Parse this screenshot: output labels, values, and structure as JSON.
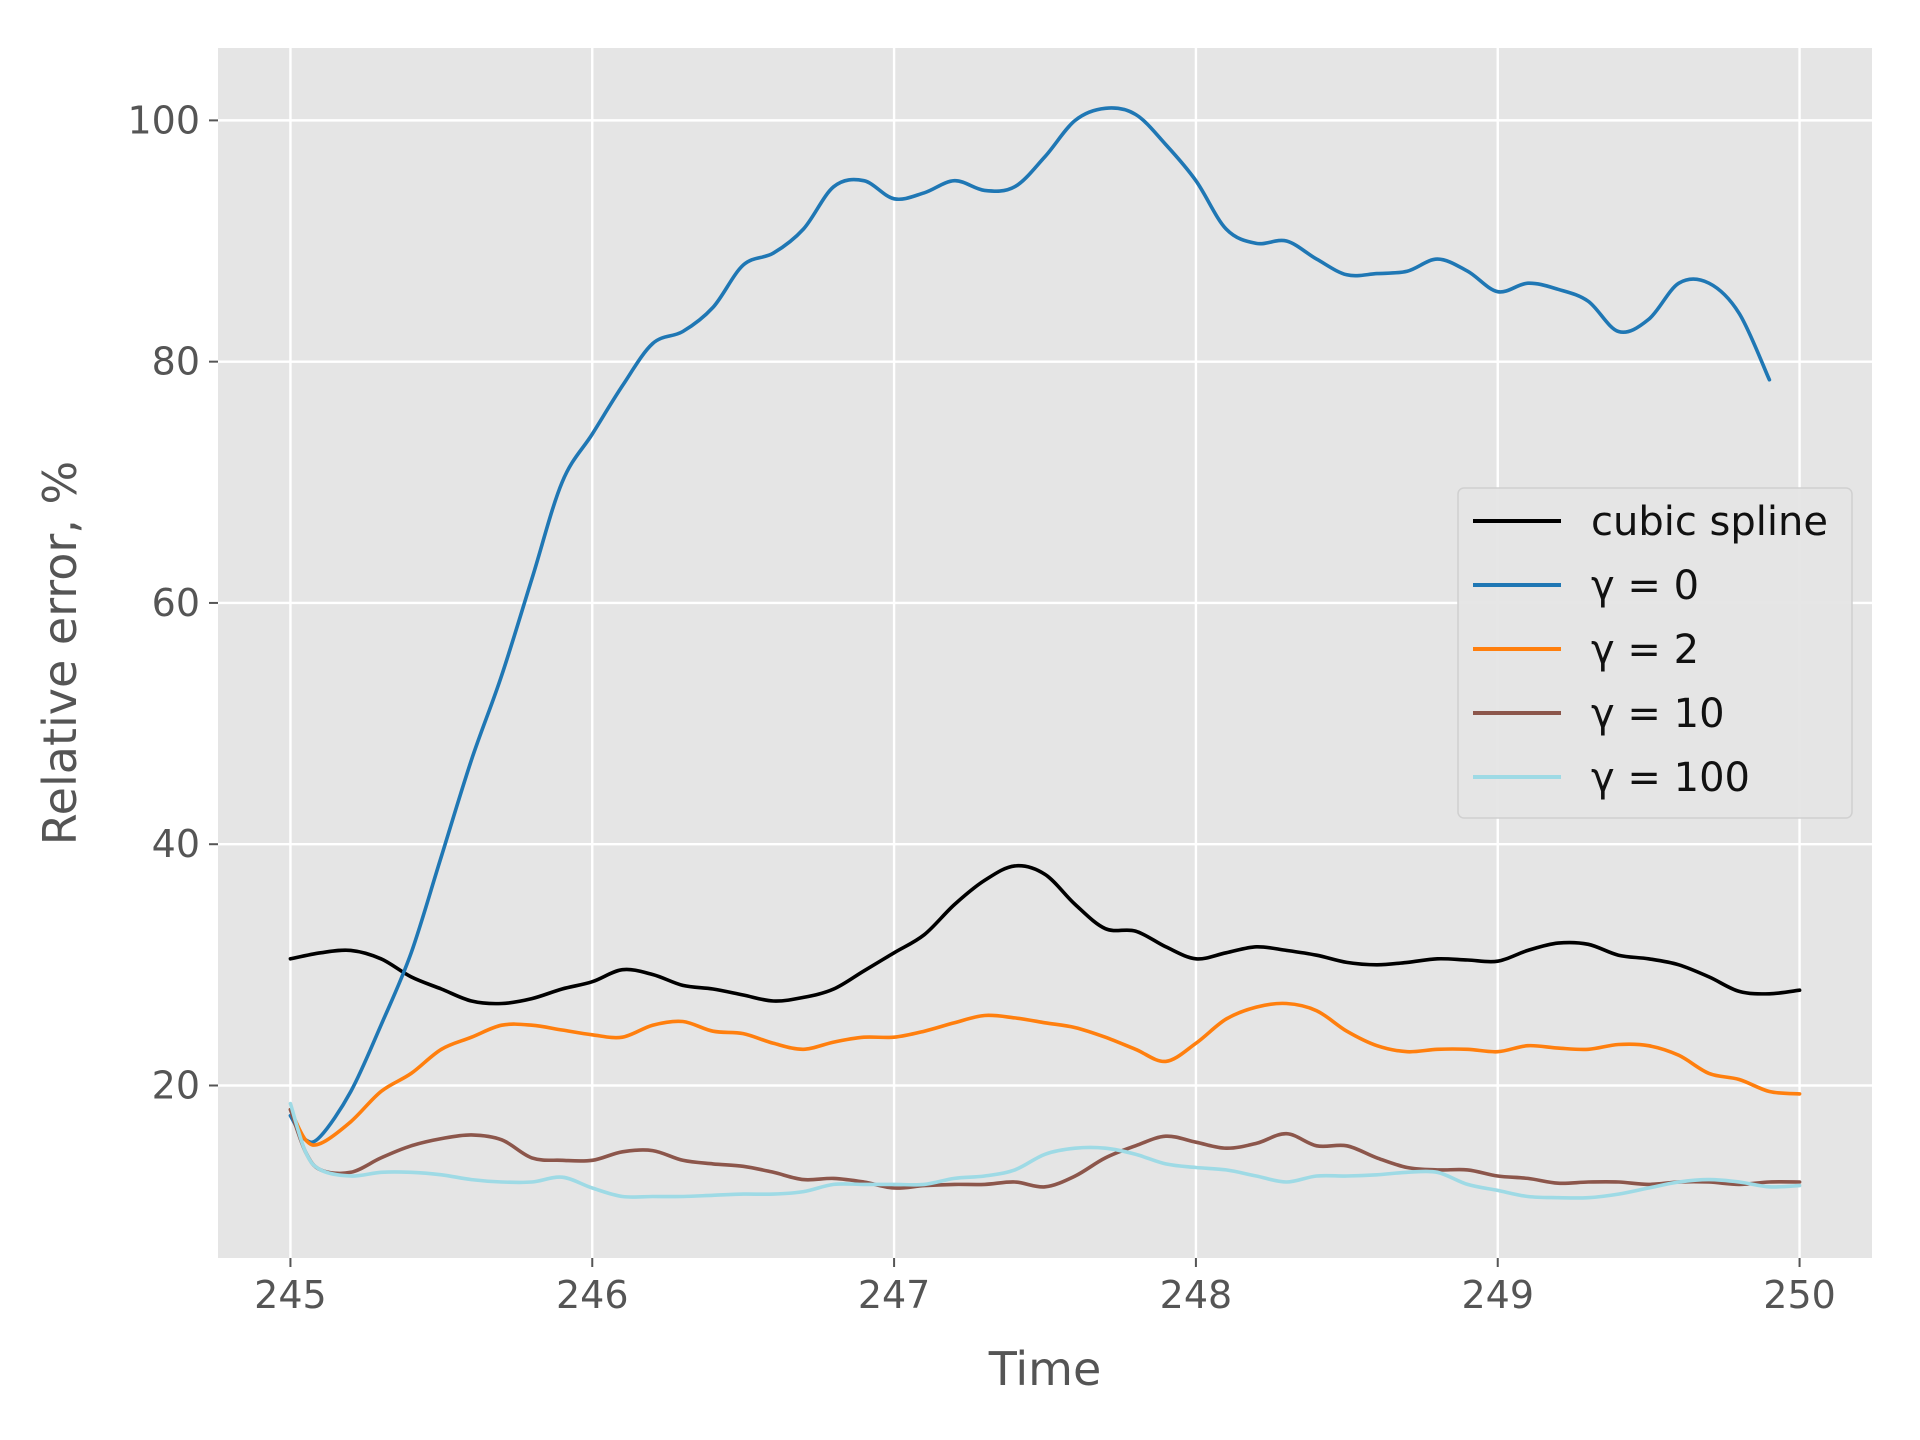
{
  "chart_data": {
    "type": "line",
    "xlabel": "Time",
    "ylabel": "Relative error, %",
    "xlim": [
      244.76,
      250.24
    ],
    "ylim": [
      5.7,
      106.0
    ],
    "xticks": [
      245,
      246,
      247,
      248,
      249,
      250
    ],
    "xtick_labels": [
      "245",
      "246",
      "247",
      "248",
      "249",
      "250"
    ],
    "yticks": [
      20,
      40,
      60,
      80,
      100
    ],
    "ytick_labels": [
      "20",
      "40",
      "60",
      "80",
      "100"
    ],
    "grid": true,
    "legend_position": "center-right",
    "series": [
      {
        "name": "cubic spline",
        "color": "#000000",
        "points": [
          [
            245.0,
            30.5
          ],
          [
            245.1,
            31.0
          ],
          [
            245.2,
            31.2
          ],
          [
            245.3,
            30.5
          ],
          [
            245.4,
            29.0
          ],
          [
            245.5,
            28.0
          ],
          [
            245.6,
            27.0
          ],
          [
            245.7,
            26.8
          ],
          [
            245.8,
            27.2
          ],
          [
            245.9,
            28.0
          ],
          [
            246.0,
            28.6
          ],
          [
            246.1,
            29.6
          ],
          [
            246.2,
            29.2
          ],
          [
            246.3,
            28.3
          ],
          [
            246.4,
            28.0
          ],
          [
            246.5,
            27.5
          ],
          [
            246.6,
            27.0
          ],
          [
            246.7,
            27.3
          ],
          [
            246.8,
            28.0
          ],
          [
            246.9,
            29.5
          ],
          [
            247.0,
            31.0
          ],
          [
            247.1,
            32.5
          ],
          [
            247.2,
            35.0
          ],
          [
            247.3,
            37.0
          ],
          [
            247.4,
            38.2
          ],
          [
            247.5,
            37.5
          ],
          [
            247.6,
            35.0
          ],
          [
            247.7,
            33.0
          ],
          [
            247.8,
            32.8
          ],
          [
            247.9,
            31.5
          ],
          [
            248.0,
            30.5
          ],
          [
            248.1,
            31.0
          ],
          [
            248.2,
            31.5
          ],
          [
            248.3,
            31.2
          ],
          [
            248.4,
            30.8
          ],
          [
            248.5,
            30.2
          ],
          [
            248.6,
            30.0
          ],
          [
            248.7,
            30.2
          ],
          [
            248.8,
            30.5
          ],
          [
            248.9,
            30.4
          ],
          [
            249.0,
            30.3
          ],
          [
            249.1,
            31.2
          ],
          [
            249.2,
            31.8
          ],
          [
            249.3,
            31.7
          ],
          [
            249.4,
            30.8
          ],
          [
            249.5,
            30.5
          ],
          [
            249.6,
            30.0
          ],
          [
            249.7,
            29.0
          ],
          [
            249.8,
            27.8
          ],
          [
            249.9,
            27.6
          ],
          [
            250.0,
            27.9
          ]
        ]
      },
      {
        "name": "γ = 0",
        "color": "#1f77b4",
        "points": [
          [
            245.0,
            17.5
          ],
          [
            245.05,
            15.5
          ],
          [
            245.1,
            15.8
          ],
          [
            245.2,
            19.5
          ],
          [
            245.3,
            25.0
          ],
          [
            245.4,
            31.0
          ],
          [
            245.5,
            39.0
          ],
          [
            245.6,
            47.0
          ],
          [
            245.7,
            54.0
          ],
          [
            245.8,
            62.0
          ],
          [
            245.9,
            70.0
          ],
          [
            246.0,
            74.0
          ],
          [
            246.1,
            78.0
          ],
          [
            246.2,
            81.5
          ],
          [
            246.3,
            82.5
          ],
          [
            246.4,
            84.5
          ],
          [
            246.5,
            88.0
          ],
          [
            246.6,
            89.0
          ],
          [
            246.7,
            91.0
          ],
          [
            246.8,
            94.5
          ],
          [
            246.9,
            95.0
          ],
          [
            247.0,
            93.5
          ],
          [
            247.1,
            94.0
          ],
          [
            247.2,
            95.0
          ],
          [
            247.3,
            94.2
          ],
          [
            247.4,
            94.5
          ],
          [
            247.5,
            97.0
          ],
          [
            247.6,
            100.0
          ],
          [
            247.7,
            101.0
          ],
          [
            247.8,
            100.5
          ],
          [
            247.9,
            98.0
          ],
          [
            248.0,
            95.0
          ],
          [
            248.1,
            91.0
          ],
          [
            248.2,
            89.8
          ],
          [
            248.3,
            90.0
          ],
          [
            248.4,
            88.5
          ],
          [
            248.5,
            87.2
          ],
          [
            248.6,
            87.3
          ],
          [
            248.7,
            87.5
          ],
          [
            248.8,
            88.5
          ],
          [
            248.9,
            87.5
          ],
          [
            249.0,
            85.8
          ],
          [
            249.1,
            86.5
          ],
          [
            249.2,
            86.0
          ],
          [
            249.3,
            85.0
          ],
          [
            249.4,
            82.5
          ],
          [
            249.5,
            83.5
          ],
          [
            249.6,
            86.5
          ],
          [
            249.7,
            86.5
          ],
          [
            249.8,
            84.0
          ],
          [
            249.9,
            78.5
          ]
        ]
      },
      {
        "name": "γ = 2",
        "color": "#ff7f0e",
        "points": [
          [
            245.0,
            18.0
          ],
          [
            245.05,
            15.5
          ],
          [
            245.1,
            15.2
          ],
          [
            245.2,
            17.0
          ],
          [
            245.3,
            19.5
          ],
          [
            245.4,
            21.0
          ],
          [
            245.5,
            23.0
          ],
          [
            245.6,
            24.0
          ],
          [
            245.7,
            25.0
          ],
          [
            245.8,
            25.0
          ],
          [
            245.9,
            24.6
          ],
          [
            246.0,
            24.2
          ],
          [
            246.1,
            24.0
          ],
          [
            246.2,
            25.0
          ],
          [
            246.3,
            25.3
          ],
          [
            246.4,
            24.5
          ],
          [
            246.5,
            24.3
          ],
          [
            246.6,
            23.5
          ],
          [
            246.7,
            23.0
          ],
          [
            246.8,
            23.6
          ],
          [
            246.9,
            24.0
          ],
          [
            247.0,
            24.0
          ],
          [
            247.1,
            24.5
          ],
          [
            247.2,
            25.2
          ],
          [
            247.3,
            25.8
          ],
          [
            247.4,
            25.6
          ],
          [
            247.5,
            25.2
          ],
          [
            247.6,
            24.8
          ],
          [
            247.7,
            24.0
          ],
          [
            247.8,
            23.0
          ],
          [
            247.9,
            22.0
          ],
          [
            248.0,
            23.5
          ],
          [
            248.1,
            25.5
          ],
          [
            248.2,
            26.5
          ],
          [
            248.3,
            26.8
          ],
          [
            248.4,
            26.2
          ],
          [
            248.5,
            24.5
          ],
          [
            248.6,
            23.3
          ],
          [
            248.7,
            22.8
          ],
          [
            248.8,
            23.0
          ],
          [
            248.9,
            23.0
          ],
          [
            249.0,
            22.8
          ],
          [
            249.1,
            23.3
          ],
          [
            249.2,
            23.1
          ],
          [
            249.3,
            23.0
          ],
          [
            249.4,
            23.4
          ],
          [
            249.5,
            23.3
          ],
          [
            249.6,
            22.5
          ],
          [
            249.7,
            21.0
          ],
          [
            249.8,
            20.5
          ],
          [
            249.9,
            19.5
          ],
          [
            250.0,
            19.3
          ]
        ]
      },
      {
        "name": "γ = 10",
        "color": "#8c564b",
        "points": [
          [
            245.0,
            18.0
          ],
          [
            245.05,
            14.5
          ],
          [
            245.1,
            13.0
          ],
          [
            245.2,
            12.8
          ],
          [
            245.3,
            14.0
          ],
          [
            245.4,
            15.0
          ],
          [
            245.5,
            15.6
          ],
          [
            245.6,
            15.9
          ],
          [
            245.7,
            15.5
          ],
          [
            245.8,
            14.0
          ],
          [
            245.9,
            13.8
          ],
          [
            246.0,
            13.8
          ],
          [
            246.1,
            14.5
          ],
          [
            246.2,
            14.6
          ],
          [
            246.3,
            13.8
          ],
          [
            246.4,
            13.5
          ],
          [
            246.5,
            13.3
          ],
          [
            246.6,
            12.8
          ],
          [
            246.7,
            12.2
          ],
          [
            246.8,
            12.3
          ],
          [
            246.9,
            12.0
          ],
          [
            247.0,
            11.5
          ],
          [
            247.1,
            11.7
          ],
          [
            247.2,
            11.8
          ],
          [
            247.3,
            11.8
          ],
          [
            247.4,
            12.0
          ],
          [
            247.5,
            11.6
          ],
          [
            247.6,
            12.5
          ],
          [
            247.7,
            14.0
          ],
          [
            247.8,
            15.0
          ],
          [
            247.9,
            15.8
          ],
          [
            248.0,
            15.3
          ],
          [
            248.1,
            14.8
          ],
          [
            248.2,
            15.2
          ],
          [
            248.3,
            16.0
          ],
          [
            248.4,
            15.0
          ],
          [
            248.5,
            15.0
          ],
          [
            248.6,
            14.0
          ],
          [
            248.7,
            13.2
          ],
          [
            248.8,
            13.0
          ],
          [
            248.9,
            13.0
          ],
          [
            249.0,
            12.5
          ],
          [
            249.1,
            12.3
          ],
          [
            249.2,
            11.9
          ],
          [
            249.3,
            12.0
          ],
          [
            249.4,
            12.0
          ],
          [
            249.5,
            11.8
          ],
          [
            249.6,
            12.0
          ],
          [
            249.7,
            12.0
          ],
          [
            249.8,
            11.8
          ],
          [
            249.9,
            12.0
          ],
          [
            250.0,
            12.0
          ]
        ]
      },
      {
        "name": "γ = 100",
        "color": "#9edae5",
        "points": [
          [
            245.0,
            18.5
          ],
          [
            245.05,
            14.5
          ],
          [
            245.1,
            13.0
          ],
          [
            245.2,
            12.5
          ],
          [
            245.3,
            12.8
          ],
          [
            245.4,
            12.8
          ],
          [
            245.5,
            12.6
          ],
          [
            245.6,
            12.2
          ],
          [
            245.7,
            12.0
          ],
          [
            245.8,
            12.0
          ],
          [
            245.9,
            12.4
          ],
          [
            246.0,
            11.5
          ],
          [
            246.1,
            10.8
          ],
          [
            246.2,
            10.8
          ],
          [
            246.3,
            10.8
          ],
          [
            246.4,
            10.9
          ],
          [
            246.5,
            11.0
          ],
          [
            246.6,
            11.0
          ],
          [
            246.7,
            11.2
          ],
          [
            246.8,
            11.8
          ],
          [
            246.9,
            11.8
          ],
          [
            247.0,
            11.8
          ],
          [
            247.1,
            11.8
          ],
          [
            247.2,
            12.3
          ],
          [
            247.3,
            12.5
          ],
          [
            247.4,
            13.0
          ],
          [
            247.5,
            14.3
          ],
          [
            247.6,
            14.8
          ],
          [
            247.7,
            14.8
          ],
          [
            247.8,
            14.3
          ],
          [
            247.9,
            13.5
          ],
          [
            248.0,
            13.2
          ],
          [
            248.1,
            13.0
          ],
          [
            248.2,
            12.5
          ],
          [
            248.3,
            12.0
          ],
          [
            248.4,
            12.5
          ],
          [
            248.5,
            12.5
          ],
          [
            248.6,
            12.6
          ],
          [
            248.7,
            12.8
          ],
          [
            248.8,
            12.8
          ],
          [
            248.9,
            11.8
          ],
          [
            249.0,
            11.3
          ],
          [
            249.1,
            10.8
          ],
          [
            249.2,
            10.7
          ],
          [
            249.3,
            10.7
          ],
          [
            249.4,
            11.0
          ],
          [
            249.5,
            11.5
          ],
          [
            249.6,
            12.0
          ],
          [
            249.7,
            12.2
          ],
          [
            249.8,
            12.0
          ],
          [
            249.9,
            11.6
          ],
          [
            250.0,
            11.7
          ]
        ]
      }
    ],
    "legend": [
      {
        "label": "cubic spline",
        "color": "#000000"
      },
      {
        "label": "γ = 0",
        "color": "#1f77b4"
      },
      {
        "label": "γ = 2",
        "color": "#ff7f0e"
      },
      {
        "label": "γ = 10",
        "color": "#8c564b"
      },
      {
        "label": "γ = 100",
        "color": "#9edae5"
      }
    ]
  }
}
